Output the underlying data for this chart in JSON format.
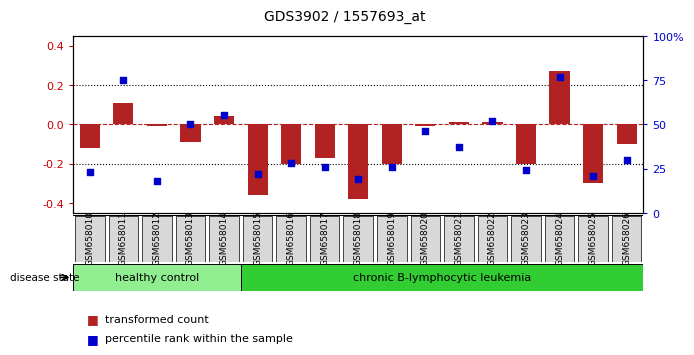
{
  "title": "GDS3902 / 1557693_at",
  "samples": [
    "GSM658010",
    "GSM658011",
    "GSM658012",
    "GSM658013",
    "GSM658014",
    "GSM658015",
    "GSM658016",
    "GSM658017",
    "GSM658018",
    "GSM658019",
    "GSM658020",
    "GSM658021",
    "GSM658022",
    "GSM658023",
    "GSM658024",
    "GSM658025",
    "GSM658026"
  ],
  "bar_values": [
    -0.12,
    0.11,
    -0.01,
    -0.09,
    0.04,
    -0.36,
    -0.2,
    -0.17,
    -0.38,
    -0.2,
    -0.01,
    0.01,
    0.01,
    -0.2,
    0.27,
    -0.3,
    -0.1
  ],
  "dot_values": [
    23,
    75,
    18,
    50,
    55,
    22,
    28,
    26,
    19,
    26,
    46,
    37,
    52,
    24,
    77,
    21,
    30
  ],
  "healthy_count": 5,
  "bar_color": "#b22222",
  "dot_color": "#0000cc",
  "healthy_color": "#90ee90",
  "leukemia_color": "#32cd32",
  "healthy_label": "healthy control",
  "leukemia_label": "chronic B-lymphocytic leukemia",
  "ylim": [
    -0.45,
    0.45
  ],
  "yticks_left": [
    -0.4,
    -0.2,
    0.0,
    0.2,
    0.4
  ],
  "yticks_right": [
    0,
    25,
    50,
    75,
    100
  ],
  "background_color": "#ffffff",
  "label_box_color": "#d8d8d8",
  "left_axis_color": "#cc0000",
  "right_axis_color": "#0000cc"
}
